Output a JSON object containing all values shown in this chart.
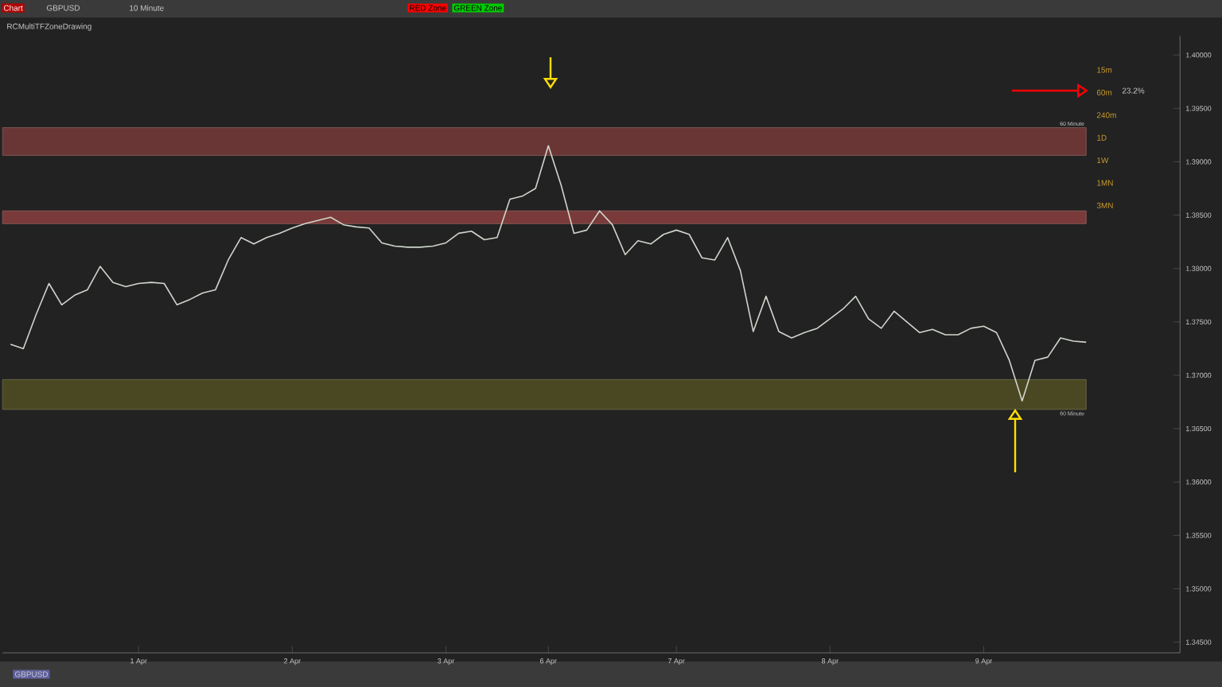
{
  "chart_data": {
    "type": "line",
    "title": "GBPUSD",
    "subtitle": "10 Minute",
    "annotations": [
      "Chart",
      "RED Zone",
      "GREEN Zone",
      "RCMultiTFZoneDrawing",
      "GBPUSD",
      "15m",
      "60m",
      "240m",
      "1D",
      "1W",
      "1MN",
      "3MN",
      "23.2%"
    ],
    "categories": [
      null,
      null,
      null,
      null,
      null,
      null,
      null,
      null,
      null,
      null,
      "1 Apr",
      null,
      null,
      null,
      null,
      null,
      null,
      null,
      null,
      null,
      null,
      null,
      "2 Apr",
      null,
      null,
      null,
      null,
      null,
      null,
      null,
      null,
      null,
      null,
      null,
      "3 Apr",
      null,
      null,
      null,
      null,
      null,
      null,
      null,
      "6 Apr",
      null,
      null,
      null,
      null,
      null,
      null,
      null,
      null,
      null,
      "7 Apr",
      null,
      null,
      null,
      null,
      null,
      null,
      null,
      null,
      null,
      null,
      null,
      "8 Apr",
      null,
      null,
      null,
      null,
      null,
      null,
      null,
      null,
      null,
      null,
      null,
      "9 Apr",
      null,
      null,
      null,
      null,
      null,
      null,
      null,
      null
    ],
    "series": [
      {
        "color": "#cfd6cc",
        "values": [
          1.3729,
          1.3725,
          1.3757,
          1.3786,
          1.3766,
          1.3775,
          1.378,
          1.3802,
          1.3787,
          1.3783,
          1.3786,
          1.3787,
          1.3786,
          1.3766,
          1.3771,
          1.3777,
          1.378,
          1.3808,
          1.3829,
          1.3823,
          1.3829,
          1.3833,
          1.3838,
          1.3842,
          1.3845,
          1.3848,
          1.3841,
          1.3839,
          1.3838,
          1.3824,
          1.3821,
          1.382,
          1.382,
          1.3821,
          1.3824,
          1.3833,
          1.3835,
          1.3827,
          1.3829,
          1.3865,
          1.3868,
          1.3875,
          1.3915,
          1.3878,
          1.3833,
          1.3836,
          1.3854,
          1.3841,
          1.3813,
          1.3826,
          1.3823,
          1.3832,
          1.3836,
          1.3832,
          1.381,
          1.3808,
          1.3829,
          1.3798,
          1.3741,
          1.3774,
          1.3741,
          1.3735,
          1.374,
          1.3744,
          1.3753,
          1.3762,
          1.3774,
          1.3753,
          1.3744,
          1.376,
          1.375,
          1.374,
          1.3743,
          1.3738,
          1.3738,
          1.3744,
          1.3746,
          1.374,
          1.3714,
          1.3676,
          1.3714,
          1.3717,
          1.3735,
          1.3732,
          1.3731
        ]
      }
    ],
    "marker": "none",
    "ylim": [
      1.344,
      1.4018
    ],
    "yticks": [
      {
        "value": 1.345,
        "label": "1.34500"
      },
      {
        "value": 1.35,
        "label": "1.35000"
      },
      {
        "value": 1.355,
        "label": "1.35500"
      },
      {
        "value": 1.36,
        "label": "1.36000"
      },
      {
        "value": 1.365,
        "label": "1.36500"
      },
      {
        "value": 1.37,
        "label": "1.37000"
      },
      {
        "value": 1.375,
        "label": "1.37500"
      },
      {
        "value": 1.38,
        "label": "1.38000"
      },
      {
        "value": 1.385,
        "label": "1.38500"
      },
      {
        "value": 1.39,
        "label": "1.39000"
      },
      {
        "value": 1.395,
        "label": "1.39500"
      },
      {
        "value": 1.4,
        "label": "1.40000"
      }
    ],
    "bands": [
      {
        "axis": "y",
        "from": 1.3906,
        "to": 1.3932,
        "label": "60 Minute",
        "color": "#6a3535"
      },
      {
        "axis": "y",
        "from": 1.3842,
        "to": 1.3854,
        "color": "#7a3a3a"
      },
      {
        "axis": "y",
        "from": 1.3668,
        "to": 1.3696,
        "label": "60 Minute",
        "color": "#4a4822"
      }
    ]
  }
}
